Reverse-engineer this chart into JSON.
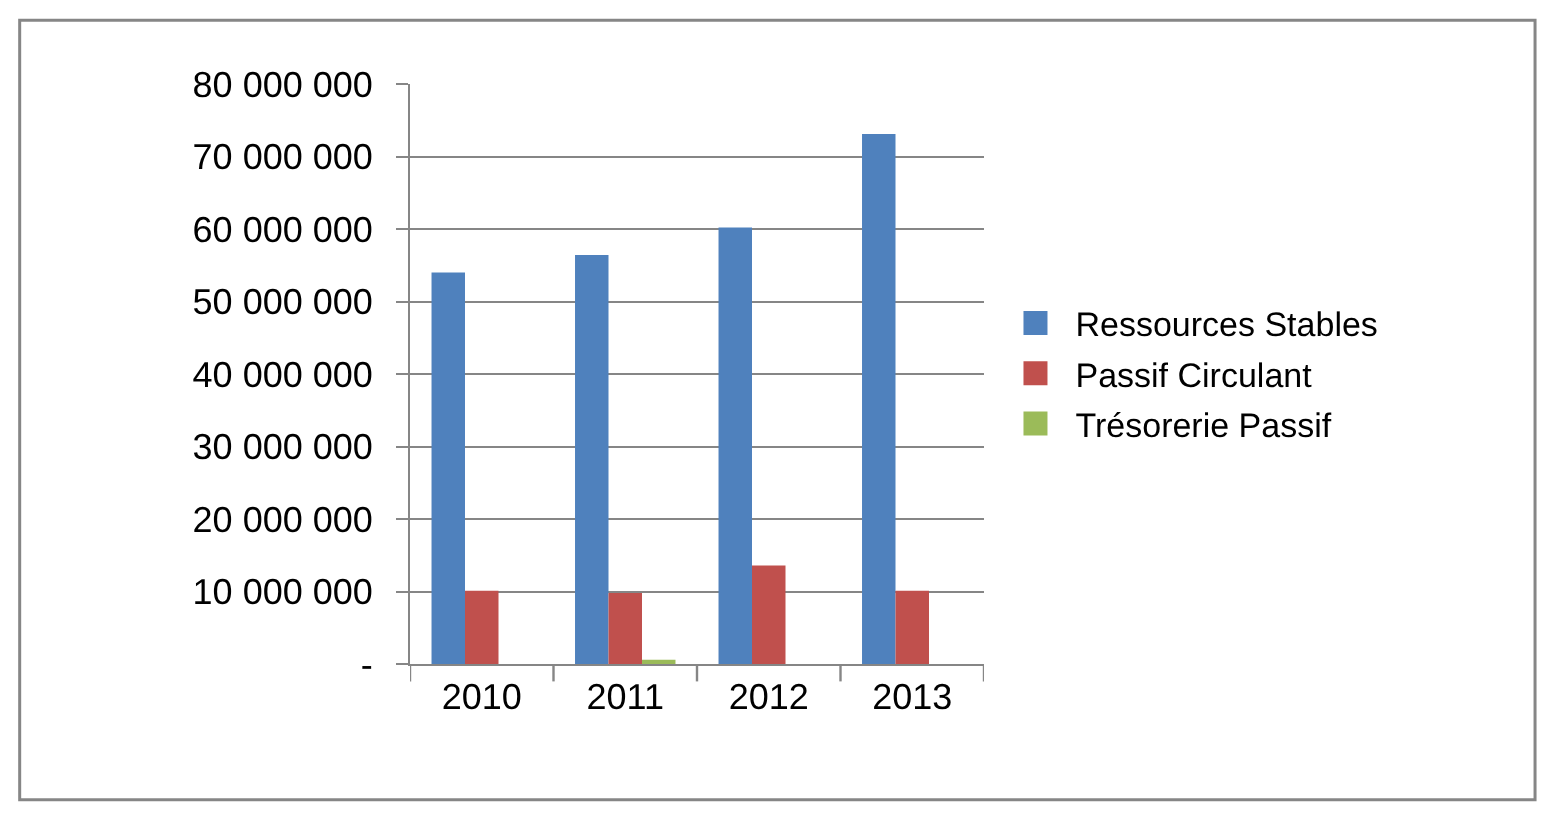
{
  "chart_data": {
    "type": "bar",
    "categories": [
      "2010",
      "2011",
      "2012",
      "2013"
    ],
    "series": [
      {
        "name": "Ressources Stables",
        "color": "#4f81bd",
        "values": [
          54000000,
          56400000,
          60200000,
          73100000
        ]
      },
      {
        "name": "Passif Circulant",
        "color": "#c0504d",
        "values": [
          10100000,
          9800000,
          13600000,
          10100000
        ]
      },
      {
        "name": "Trésorerie Passif",
        "color": "#9bbb59",
        "values": [
          0,
          600000,
          0,
          0
        ]
      }
    ],
    "ylim": [
      0,
      80000000
    ],
    "yticks": [
      {
        "value": 0,
        "label": "-"
      },
      {
        "value": 10000000,
        "label": "10 000 000"
      },
      {
        "value": 20000000,
        "label": "20 000 000"
      },
      {
        "value": 30000000,
        "label": "30 000 000"
      },
      {
        "value": 40000000,
        "label": "40 000 000"
      },
      {
        "value": 50000000,
        "label": "50 000 000"
      },
      {
        "value": 60000000,
        "label": "60 000 000"
      },
      {
        "value": 70000000,
        "label": "70 000 000"
      },
      {
        "value": 80000000,
        "label": "80 000 000"
      }
    ],
    "grid": "y",
    "legend": "right"
  }
}
